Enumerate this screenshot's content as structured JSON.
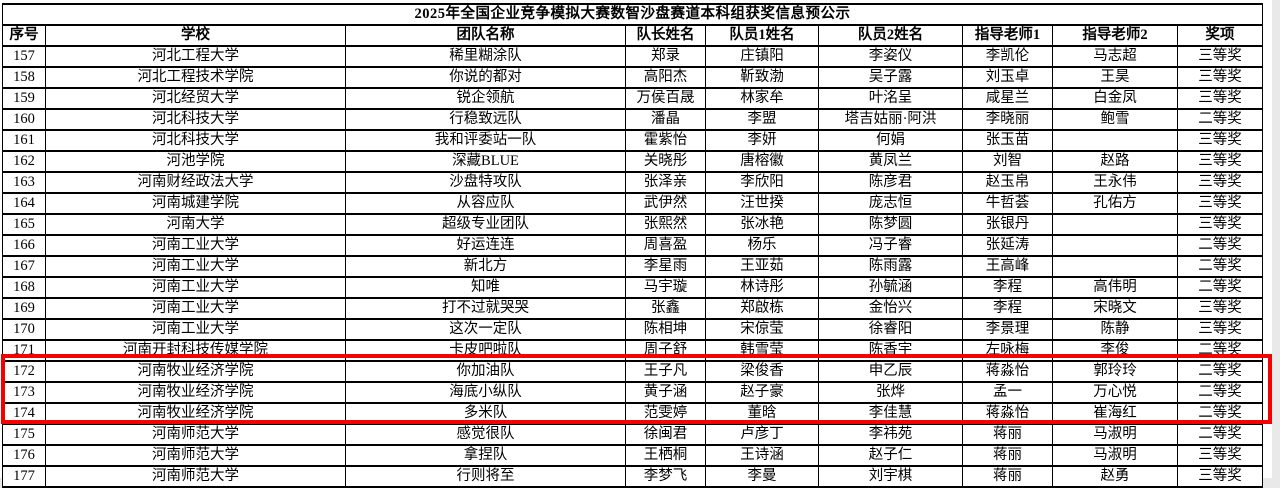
{
  "title": "2025年全国企业竞争模拟大赛数智沙盘赛道本科组获奖信息预公示",
  "highlight": {
    "color": "#f30000",
    "row_numbers": [
      "172",
      "173",
      "174"
    ]
  },
  "table": {
    "headers": [
      "序号",
      "学校",
      "团队名称",
      "队长姓名",
      "队员1姓名",
      "队员2姓名",
      "指导老师1",
      "指导老师2",
      "奖项"
    ],
    "rows": [
      [
        "157",
        "河北工程大学",
        "稀里糊涂队",
        "郑录",
        "庄镇阳",
        "李姿仪",
        "李凯伦",
        "马志超",
        "三等奖"
      ],
      [
        "158",
        "河北工程技术学院",
        "你说的都对",
        "高阳杰",
        "靳致渤",
        "吴子露",
        "刘玉卓",
        "王昊",
        "三等奖"
      ],
      [
        "159",
        "河北经贸大学",
        "锐企领航",
        "万侯百晟",
        "林家牟",
        "叶洺呈",
        "咸星兰",
        "白金凤",
        "三等奖"
      ],
      [
        "160",
        "河北科技大学",
        "行稳致远队",
        "潘晶",
        "李盟",
        "塔吉姑丽·阿洪",
        "李晓丽",
        "鲍雪",
        "二等奖"
      ],
      [
        "161",
        "河北科技大学",
        "我和评委站一队",
        "霍紫怡",
        "李妍",
        "何娟",
        "张玉苗",
        "",
        "三等奖"
      ],
      [
        "162",
        "河池学院",
        "深藏BLUE",
        "关晓彤",
        "唐榕徽",
        "黄凤兰",
        "刘智",
        "赵路",
        "三等奖"
      ],
      [
        "163",
        "河南财经政法大学",
        "沙盘特攻队",
        "张泽亲",
        "李欣阳",
        "陈彦君",
        "赵玉帛",
        "王永伟",
        "三等奖"
      ],
      [
        "164",
        "河南城建学院",
        "从容应队",
        "武伊然",
        "汪世揆",
        "庞志恒",
        "牛哲荟",
        "孔佑方",
        "三等奖"
      ],
      [
        "165",
        "河南大学",
        "超级专业团队",
        "张熙然",
        "张冰艳",
        "陈梦圆",
        "张银丹",
        "",
        "三等奖"
      ],
      [
        "166",
        "河南工业大学",
        "好运连连",
        "周喜盈",
        "杨乐",
        "冯子睿",
        "张延涛",
        "",
        "二等奖"
      ],
      [
        "167",
        "河南工业大学",
        "新北方",
        "李星雨",
        "王亚茹",
        "陈雨露",
        "王高峰",
        "",
        "二等奖"
      ],
      [
        "168",
        "河南工业大学",
        "知唯",
        "马宇璇",
        "林诗彤",
        "孙毓涵",
        "李程",
        "高伟明",
        "二等奖"
      ],
      [
        "169",
        "河南工业大学",
        "打不过就哭哭",
        "张鑫",
        "郑啟栋",
        "金怡兴",
        "李程",
        "宋晓文",
        "三等奖"
      ],
      [
        "170",
        "河南工业大学",
        "这次一定队",
        "陈相坤",
        "宋倞莹",
        "徐睿阳",
        "李景理",
        "陈静",
        "三等奖"
      ],
      [
        "171",
        "河南开封科技传媒学院",
        "卡皮吧啦队",
        "周子舒",
        "韩雪莹",
        "陈香宇",
        "左咏梅",
        "李俊",
        "二等奖"
      ],
      [
        "172",
        "河南牧业经济学院",
        "你加油队",
        "王子凡",
        "梁俊香",
        "申乙辰",
        "蒋淼怡",
        "郭玲玲",
        "二等奖"
      ],
      [
        "173",
        "河南牧业经济学院",
        "海底小纵队",
        "黄子涵",
        "赵子豪",
        "张烨",
        "孟一",
        "万心悦",
        "二等奖"
      ],
      [
        "174",
        "河南牧业经济学院",
        "多米队",
        "范雯婷",
        "董晗",
        "李佳慧",
        "蒋淼怡",
        "崔海红",
        "二等奖"
      ],
      [
        "175",
        "河南师范大学",
        "感觉很队",
        "徐闽君",
        "卢彦丁",
        "李祎苑",
        "蒋丽",
        "马淑明",
        "二等奖"
      ],
      [
        "176",
        "河南师范大学",
        "拿捏队",
        "王栖桐",
        "王诗涵",
        "赵子仁",
        "蒋丽",
        "马淑明",
        "三等奖"
      ],
      [
        "177",
        "河南师范大学",
        "行则将至",
        "李梦飞",
        "李曼",
        "刘宇棋",
        "蒋丽",
        "赵勇",
        "三等奖"
      ]
    ]
  }
}
